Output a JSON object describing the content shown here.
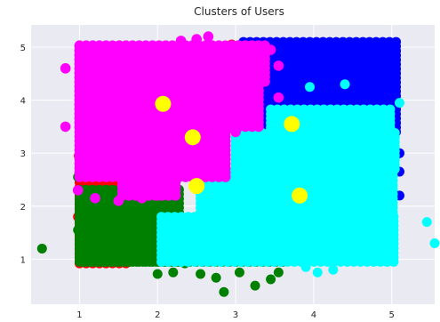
{
  "chart_data": {
    "type": "scatter",
    "title": "Clusters of Users",
    "xlabel": "",
    "ylabel": "",
    "xlim": [
      0.38,
      5.55
    ],
    "ylim": [
      0.15,
      5.42
    ],
    "xticks": [
      "1",
      "2",
      "3",
      "4",
      "5"
    ],
    "yticks": [
      "1",
      "2",
      "3",
      "4",
      "5"
    ],
    "grid": true,
    "background": "#eaeaf2",
    "series": [
      {
        "color": "#ff0000",
        "regions": [
          [
            1.0,
            1.65,
            0.92,
            3.1
          ]
        ],
        "points": [
          [
            0.98,
            1.8
          ],
          [
            0.99,
            2.95
          ],
          [
            1.05,
            2.6
          ],
          [
            1.4,
            0.95
          ],
          [
            2.95,
            5.05
          ],
          [
            3.05,
            4.95
          ]
        ]
      },
      {
        "color": "#008000",
        "regions": [
          [
            1.0,
            2.35,
            0.95,
            2.35
          ],
          [
            1.05,
            3.6,
            0.95,
            1.6
          ],
          [
            3.3,
            4.1,
            3.1,
            4.35
          ]
        ],
        "points": [
          [
            0.52,
            1.2
          ],
          [
            0.98,
            2.55
          ],
          [
            0.98,
            2.3
          ],
          [
            0.98,
            1.55
          ],
          [
            2.0,
            0.72
          ],
          [
            2.2,
            0.75
          ],
          [
            2.35,
            0.92
          ],
          [
            2.55,
            0.72
          ],
          [
            2.75,
            0.65
          ],
          [
            2.85,
            0.38
          ],
          [
            3.05,
            0.75
          ],
          [
            3.25,
            0.5
          ],
          [
            3.45,
            0.62
          ],
          [
            3.55,
            0.75
          ],
          [
            3.35,
            3.5
          ],
          [
            3.25,
            3.3
          ],
          [
            3.6,
            4.35
          ],
          [
            3.8,
            4.4
          ],
          [
            4.05,
            4.4
          ]
        ]
      },
      {
        "color": "#0000ff",
        "regions": [
          [
            3.1,
            5.1,
            3.4,
            5.1
          ]
        ],
        "points": [
          [
            2.55,
            4.95
          ],
          [
            3.6,
            3.9
          ],
          [
            5.1,
            3.0
          ],
          [
            5.1,
            2.65
          ],
          [
            4.1,
            2.3
          ],
          [
            5.1,
            2.2
          ]
        ]
      },
      {
        "color": "#00ffff",
        "regions": [
          [
            2.05,
            5.05,
            0.95,
            1.8
          ],
          [
            2.55,
            5.05,
            1.8,
            2.7
          ],
          [
            3.0,
            5.05,
            2.7,
            3.4
          ],
          [
            3.45,
            5.05,
            3.4,
            3.85
          ]
        ],
        "points": [
          [
            3.55,
            4.05
          ],
          [
            3.95,
            4.25
          ],
          [
            4.4,
            4.3
          ],
          [
            5.1,
            3.95
          ],
          [
            5.45,
            1.7
          ],
          [
            5.55,
            1.3
          ],
          [
            3.9,
            0.85
          ],
          [
            4.05,
            0.75
          ],
          [
            4.25,
            0.8
          ]
        ]
      },
      {
        "color": "#ff00ff",
        "regions": [
          [
            1.0,
            2.95,
            2.55,
            5.05
          ],
          [
            1.0,
            3.35,
            3.5,
            5.05
          ],
          [
            1.55,
            2.3,
            2.2,
            2.6
          ],
          [
            2.95,
            3.45,
            4.35,
            5.05
          ]
        ],
        "points": [
          [
            0.82,
            4.6
          ],
          [
            0.82,
            3.5
          ],
          [
            0.98,
            2.3
          ],
          [
            1.2,
            2.15
          ],
          [
            1.5,
            2.1
          ],
          [
            1.8,
            2.15
          ],
          [
            2.0,
            2.2
          ],
          [
            2.75,
            2.7
          ],
          [
            3.0,
            3.4
          ],
          [
            3.25,
            3.7
          ],
          [
            3.55,
            4.05
          ],
          [
            3.45,
            4.95
          ],
          [
            3.55,
            4.65
          ],
          [
            2.65,
            5.2
          ],
          [
            2.5,
            5.15
          ],
          [
            2.3,
            5.12
          ]
        ]
      }
    ],
    "centroids": {
      "color": "#ffff00",
      "points": [
        [
          2.07,
          3.93
        ],
        [
          2.45,
          3.3
        ],
        [
          2.5,
          2.38
        ],
        [
          3.72,
          3.55
        ],
        [
          3.82,
          2.2
        ]
      ]
    }
  }
}
